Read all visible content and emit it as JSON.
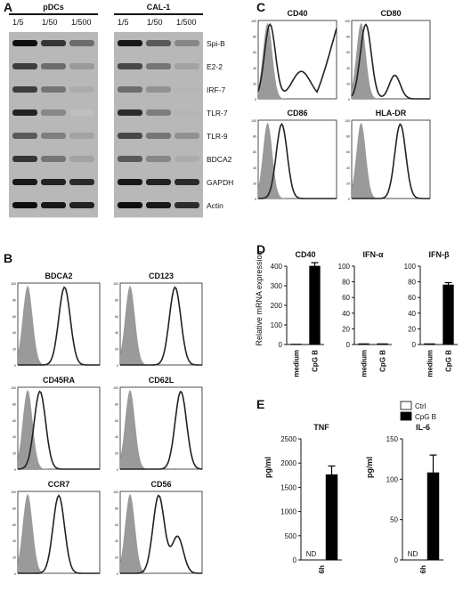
{
  "panelA": {
    "letter": "A",
    "groups": [
      {
        "title": "pDCs",
        "dilutions": [
          "1/5",
          "1/50",
          "1/500"
        ]
      },
      {
        "title": "CAL-1",
        "dilutions": [
          "1/5",
          "1/50",
          "1/500"
        ]
      }
    ],
    "genes": [
      {
        "name": "Spi-B",
        "pdc": [
          1.0,
          0.8,
          0.5
        ],
        "cal": [
          0.95,
          0.6,
          0.35
        ]
      },
      {
        "name": "E2-2",
        "pdc": [
          0.75,
          0.5,
          0.25
        ],
        "cal": [
          0.7,
          0.45,
          0.2
        ]
      },
      {
        "name": "IRF-7",
        "pdc": [
          0.75,
          0.45,
          0.15
        ],
        "cal": [
          0.5,
          0.3,
          0.1
        ]
      },
      {
        "name": "TLR-7",
        "pdc": [
          0.9,
          0.35,
          0.05
        ],
        "cal": [
          0.85,
          0.4,
          0.1
        ]
      },
      {
        "name": "TLR-9",
        "pdc": [
          0.6,
          0.4,
          0.2
        ],
        "cal": [
          0.7,
          0.45,
          0.3
        ]
      },
      {
        "name": "BDCA2",
        "pdc": [
          0.8,
          0.45,
          0.2
        ],
        "cal": [
          0.6,
          0.35,
          0.15
        ]
      },
      {
        "name": "GAPDH",
        "pdc": [
          0.95,
          0.9,
          0.85
        ],
        "cal": [
          0.95,
          0.9,
          0.85
        ]
      },
      {
        "name": "Actin",
        "pdc": [
          1.0,
          0.95,
          0.9
        ],
        "cal": [
          1.0,
          0.95,
          0.85
        ]
      }
    ]
  },
  "panelB": {
    "letter": "B",
    "plots": [
      {
        "title": "BDCA2",
        "peak": 0.45
      },
      {
        "title": "CD123",
        "peak": 0.55
      },
      {
        "title": "CD45RA",
        "peak": 0.15
      },
      {
        "title": "CD62L",
        "peak": 0.62
      },
      {
        "title": "CCR7",
        "peak": 0.38
      },
      {
        "title": "CD56",
        "peak": 0.35
      }
    ]
  },
  "panelC": {
    "letter": "C",
    "plots": [
      {
        "title": "CD40"
      },
      {
        "title": "CD80"
      },
      {
        "title": "CD86"
      },
      {
        "title": "HLA-DR"
      }
    ]
  },
  "panelD": {
    "letter": "D",
    "ylabel": "Relative mRNA expression",
    "charts": [
      {
        "title": "CD40",
        "ylim": [
          0,
          400
        ],
        "ticks": [
          "0",
          "100",
          "200",
          "300",
          "400"
        ],
        "categories": [
          "medium",
          "CpG B"
        ],
        "values": [
          2,
          400
        ],
        "errors": [
          0,
          18
        ]
      },
      {
        "title": "IFN-α",
        "ylim": [
          0,
          100
        ],
        "ticks": [
          "0",
          "20",
          "40",
          "60",
          "80",
          "100"
        ],
        "categories": [
          "medium",
          "CpG B"
        ],
        "values": [
          1,
          1
        ],
        "errors": [
          0,
          0
        ]
      },
      {
        "title": "IFN-β",
        "ylim": [
          0,
          100
        ],
        "ticks": [
          "0",
          "20",
          "40",
          "60",
          "80",
          "100"
        ],
        "categories": [
          "medium",
          "CpG B"
        ],
        "values": [
          1,
          76
        ],
        "errors": [
          0,
          3
        ]
      }
    ]
  },
  "panelE": {
    "letter": "E",
    "ylabel": "pg/ml",
    "legend": [
      {
        "label": "Ctrl",
        "color": "#ffffff"
      },
      {
        "label": "CpG B",
        "color": "#000000"
      }
    ],
    "charts": [
      {
        "title": "TNF",
        "ylim": [
          0,
          2500
        ],
        "ticks": [
          "0",
          "500",
          "1000",
          "1500",
          "2000",
          "2500"
        ],
        "xlabel": "6h",
        "nd": "ND",
        "values": [
          0,
          1760
        ],
        "errors": [
          0,
          180
        ]
      },
      {
        "title": "IL-6",
        "ylim": [
          0,
          150
        ],
        "ticks": [
          "0",
          "50",
          "100",
          "150"
        ],
        "xlabel": "6h",
        "nd": "ND",
        "values": [
          0,
          108
        ],
        "errors": [
          0,
          22
        ]
      }
    ]
  },
  "chart_data": [
    {
      "type": "bar",
      "title": "CD40",
      "ylabel": "Relative mRNA expression",
      "categories": [
        "medium",
        "CpG B"
      ],
      "values": [
        2,
        400
      ],
      "ylim": [
        0,
        400
      ]
    },
    {
      "type": "bar",
      "title": "IFN-α",
      "categories": [
        "medium",
        "CpG B"
      ],
      "values": [
        1,
        1
      ],
      "ylim": [
        0,
        100
      ]
    },
    {
      "type": "bar",
      "title": "IFN-β",
      "categories": [
        "medium",
        "CpG B"
      ],
      "values": [
        1,
        76
      ],
      "ylim": [
        0,
        100
      ]
    },
    {
      "type": "bar",
      "title": "TNF",
      "ylabel": "pg/ml",
      "categories": [
        "6h"
      ],
      "series": [
        {
          "name": "Ctrl",
          "values": [
            0
          ]
        },
        {
          "name": "CpG B",
          "values": [
            1760
          ]
        }
      ],
      "ylim": [
        0,
        2500
      ]
    },
    {
      "type": "bar",
      "title": "IL-6",
      "ylabel": "pg/ml",
      "categories": [
        "6h"
      ],
      "series": [
        {
          "name": "Ctrl",
          "values": [
            0
          ]
        },
        {
          "name": "CpG B",
          "values": [
            108
          ]
        }
      ],
      "ylim": [
        0,
        150
      ]
    }
  ]
}
